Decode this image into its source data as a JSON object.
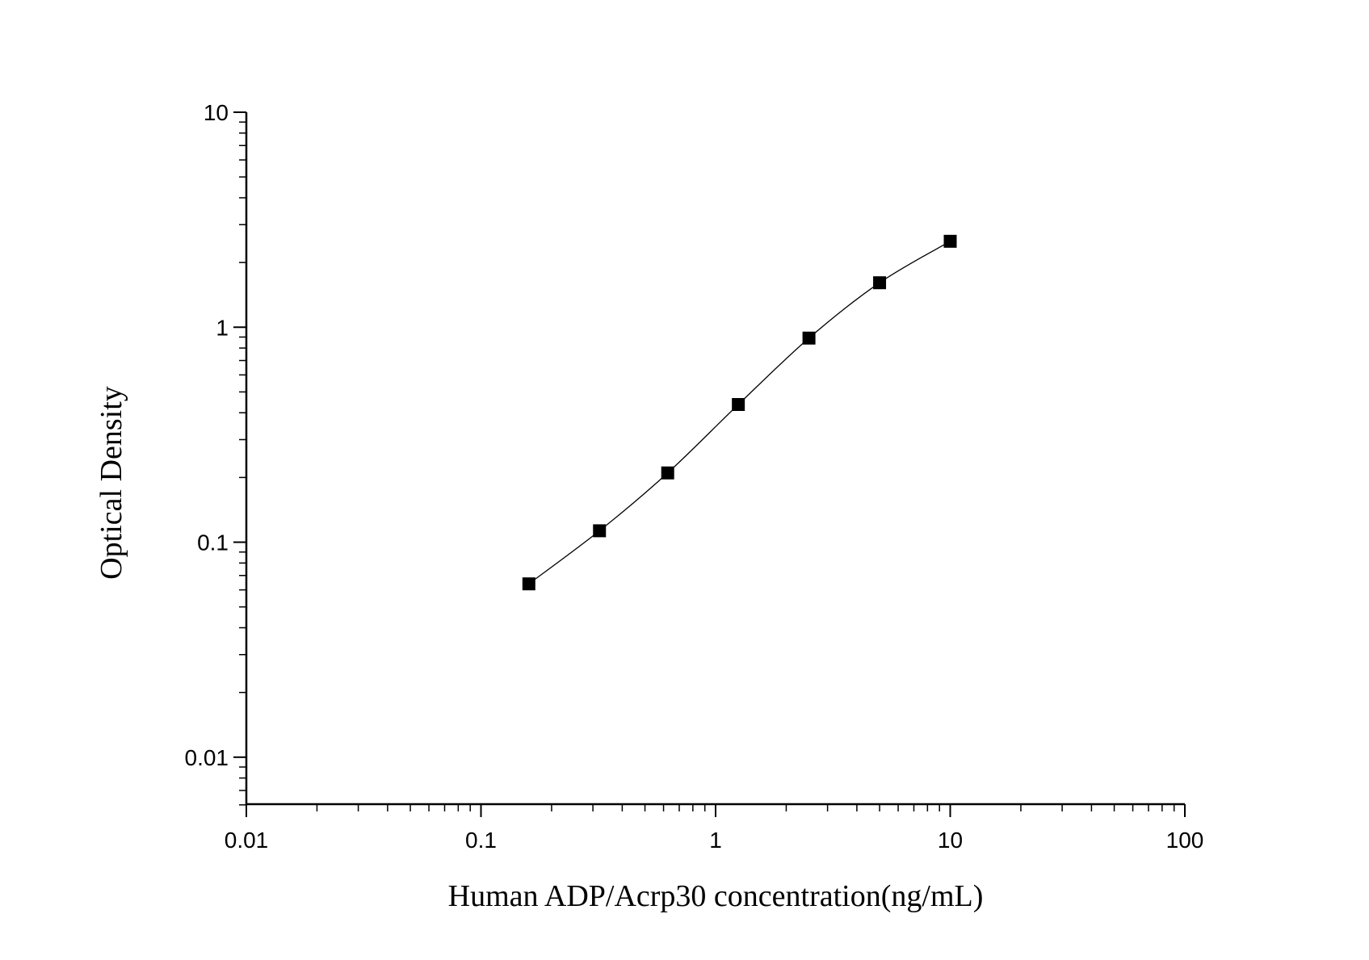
{
  "chart_data": {
    "type": "scatter",
    "title": "",
    "xlabel": "Human ADP/Acrp30 concentration(ng/mL)",
    "ylabel": "Optical Density",
    "xscale": "log",
    "yscale": "log",
    "xlim": [
      0.01,
      100
    ],
    "ylim": [
      0.006,
      10
    ],
    "x_ticks": [
      "0.01",
      "0.1",
      "1",
      "10",
      "100"
    ],
    "y_ticks": [
      "0.01",
      "0.1",
      "1",
      "10"
    ],
    "grid": false,
    "marker": "square",
    "fit_curve": true,
    "series": [
      {
        "x": [
          0.16,
          0.32,
          0.625,
          1.25,
          2.5,
          5,
          10
        ],
        "y": [
          0.064,
          0.113,
          0.21,
          0.437,
          0.89,
          1.61,
          2.51
        ]
      }
    ],
    "colors": {
      "marker": "#000000",
      "line": "#000000"
    }
  }
}
